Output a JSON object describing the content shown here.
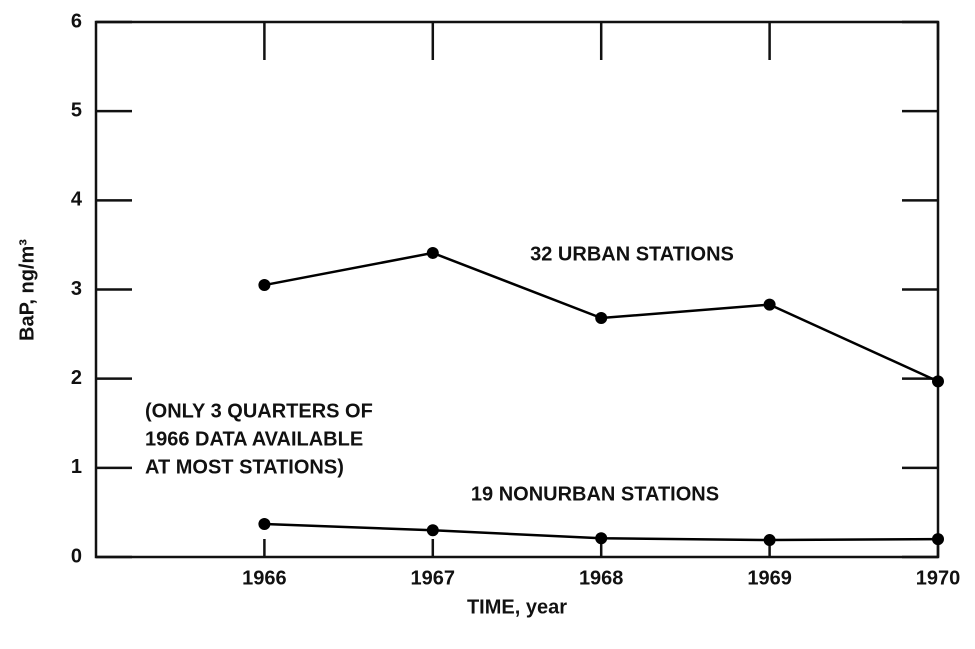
{
  "chart_data": {
    "type": "line",
    "xlabel": "TIME, year",
    "ylabel": "BaP, ng/m³",
    "x": [
      1966,
      1967,
      1968,
      1969,
      1970
    ],
    "series": [
      {
        "name": "32 URBAN STATIONS",
        "color": "#000000",
        "values": [
          3.05,
          3.41,
          2.68,
          2.83,
          1.97
        ]
      },
      {
        "name": "19 NONURBAN STATIONS",
        "color": "#000000",
        "values": [
          0.37,
          0.3,
          0.21,
          0.19,
          0.2
        ]
      }
    ],
    "annotations": [
      "(ONLY 3 QUARTERS OF",
      "1966 DATA AVAILABLE",
      "AT MOST STATIONS)"
    ],
    "xlim": [
      1965,
      1970
    ],
    "xticks": [
      1966,
      1967,
      1968,
      1969,
      1970
    ],
    "ylim": [
      0,
      6
    ],
    "yticks": [
      0,
      1,
      2,
      3,
      4,
      5,
      6
    ]
  }
}
